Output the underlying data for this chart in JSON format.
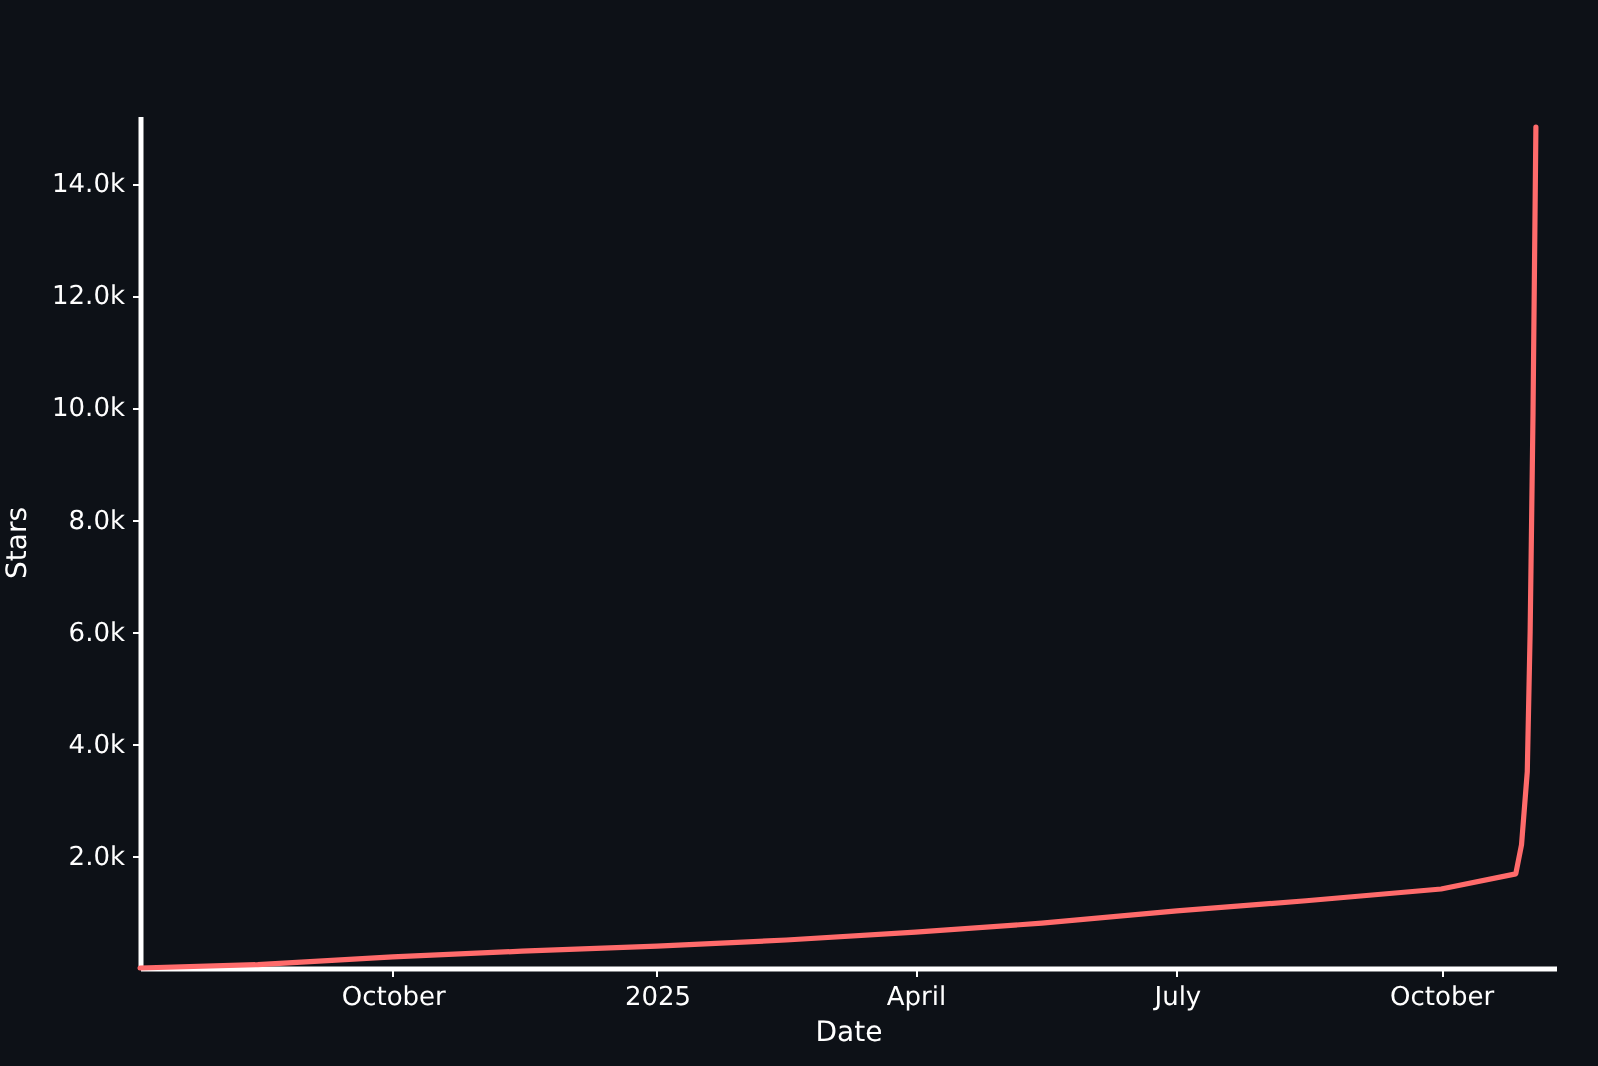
{
  "chart_data": {
    "type": "line",
    "xlabel": "Date",
    "ylabel": "Stars",
    "series": [
      {
        "color": "#ff6b6b",
        "x": [
          "2024-07-05",
          "2024-08-15",
          "2024-10-01",
          "2024-11-15",
          "2025-01-01",
          "2025-02-15",
          "2025-04-01",
          "2025-05-15",
          "2025-07-01",
          "2025-08-15",
          "2025-10-01",
          "2025-10-27",
          "2025-10-29",
          "2025-10-31",
          "2025-11-01",
          "2025-11-02",
          "2025-11-03"
        ],
        "values": [
          0,
          60,
          200,
          300,
          390,
          500,
          640,
          800,
          1020,
          1200,
          1410,
          1680,
          2200,
          3500,
          6000,
          9900,
          15000
        ]
      }
    ],
    "xlim": [
      "2024-07-05",
      "2025-11-10"
    ],
    "xticks": [
      {
        "value": "2024-10-01",
        "label": "October"
      },
      {
        "value": "2025-01-01",
        "label": "2025"
      },
      {
        "value": "2025-04-01",
        "label": "April"
      },
      {
        "value": "2025-07-01",
        "label": "July"
      },
      {
        "value": "2025-10-01",
        "label": "October"
      }
    ],
    "ylim": [
      0,
      15200
    ],
    "yticks": [
      {
        "value": 2000,
        "label": "2.0k"
      },
      {
        "value": 4000,
        "label": "4.0k"
      },
      {
        "value": 6000,
        "label": "6.0k"
      },
      {
        "value": 8000,
        "label": "8.0k"
      },
      {
        "value": 10000,
        "label": "10.0k"
      },
      {
        "value": 12000,
        "label": "12.0k"
      },
      {
        "value": 14000,
        "label": "14.0k"
      }
    ],
    "grid": false,
    "marker": "none",
    "line_style": "solid"
  }
}
